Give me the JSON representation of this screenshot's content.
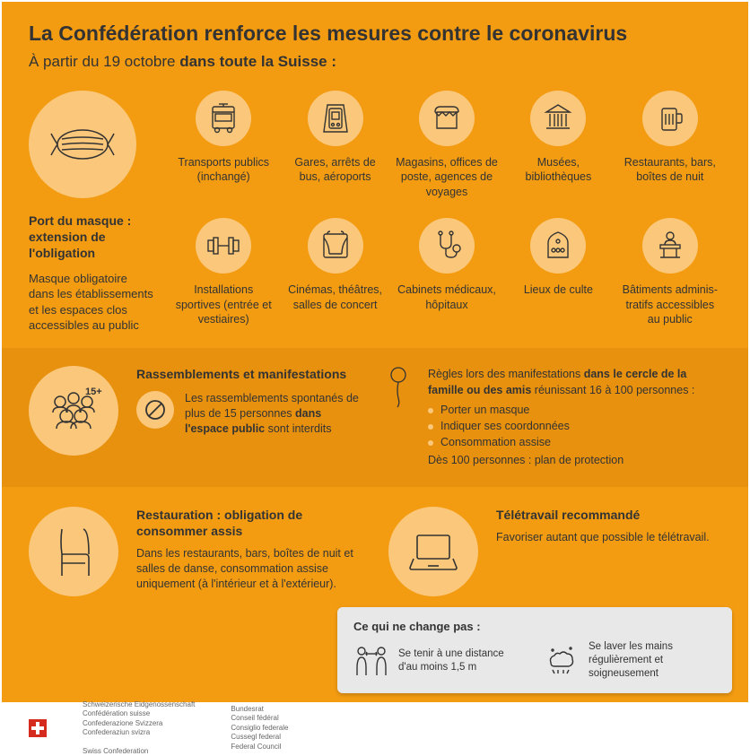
{
  "colors": {
    "bg": "#f39c12",
    "bg_dark": "#e8910e",
    "circle": "#fbc77a",
    "text": "#333333",
    "box": "#e8e8e8",
    "stroke": "#333333"
  },
  "header": {
    "title": "La Confédération renforce les mesures contre le coronavirus",
    "subtitle_pre": "À partir du 19 octobre ",
    "subtitle_bold": "dans toute la Suisse :"
  },
  "mask": {
    "title": "Port du masque : extension de l'obligation",
    "desc": "Masque obligatoire dans les établissements et les espaces clos accessibles au public"
  },
  "places": [
    {
      "icon": "bus",
      "label": "Transports publics (inchangé)"
    },
    {
      "icon": "train",
      "label": "Gares, arrêts de bus, aéroports"
    },
    {
      "icon": "shop",
      "label": "Magasins, offices de poste, agences de voyages"
    },
    {
      "icon": "museum",
      "label": "Musées, bibliothèques"
    },
    {
      "icon": "beer",
      "label": "Restaurants, bars, boîtes de nuit"
    },
    {
      "icon": "dumbbell",
      "label": "Installations sportives (entrée et vestiaires)"
    },
    {
      "icon": "theatre",
      "label": "Cinémas, théâtres, salles de concert"
    },
    {
      "icon": "stethoscope",
      "label": "Cabinets médicaux, hôpitaux"
    },
    {
      "icon": "worship",
      "label": "Lieux de culte"
    },
    {
      "icon": "admin",
      "label": "Bâtiments adminis-tratifs accessibles au public"
    }
  ],
  "gatherings": {
    "title": "Rassemblements et manifestations",
    "badge": "15+",
    "body_pre": "Les rassemblements spontanés de plus de 15 personnes ",
    "body_bold": "dans l'espace public",
    "body_post": " sont interdits"
  },
  "rules": {
    "intro_pre": "Règles lors des manifestations ",
    "intro_bold": "dans le cercle de la famille ou des amis",
    "intro_post": " réunissant 16 à 100 personnes :",
    "items": [
      "Porter un masque",
      "Indiquer ses coordonnées",
      "Consommation assise"
    ],
    "after": "Dès 100 personnes : plan de protection"
  },
  "resto": {
    "title": "Restauration : obligation de consommer assis",
    "body": "Dans les restaurants, bars, boîtes de nuit et salles de danse, consommation assise uniquement (à l'intérieur et à l'extérieur)."
  },
  "tele": {
    "title": "Télétravail recommandé",
    "body": "Favoriser autant que possible le télétravail."
  },
  "unchanged": {
    "title": "Ce qui ne change pas :",
    "items": [
      {
        "icon": "distance",
        "text": "Se tenir à une distance d'au moins 1,5 m"
      },
      {
        "icon": "wash",
        "text": "Se laver les mains régulièrement et soigneusement"
      }
    ]
  },
  "footer": {
    "confed": "Schweizerische Eidgenossenschaft\nConfédération suisse\nConfederazione Svizzera\nConfederaziun svizra\n\nSwiss Confederation",
    "council": "Bundesrat\nConseil fédéral\nConsiglio federale\nCussegl federal\nFederal Council"
  }
}
